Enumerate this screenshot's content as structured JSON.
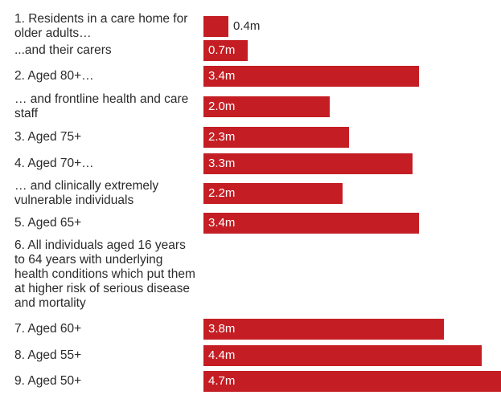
{
  "chart_data": {
    "type": "bar",
    "orientation": "horizontal",
    "categories": [
      "1. Residents in a care home for older adults…",
      "...and their carers",
      "2. Aged 80+…",
      "… and frontline health and care staff",
      "3. Aged 75+",
      "4. Aged 70+…",
      "… and clinically extremely vulnerable individuals",
      "5. Aged 65+",
      "6. All individuals aged 16 years to 64 years with underlying health conditions which put them at higher risk of serious disease and mortality",
      "7. Aged 60+",
      "8. Aged 55+",
      "9. Aged 50+"
    ],
    "values": [
      0.4,
      0.7,
      3.4,
      2.0,
      2.3,
      3.3,
      2.2,
      3.4,
      null,
      3.8,
      4.4,
      4.7
    ],
    "value_labels": [
      "0.4m",
      "0.7m",
      "3.4m",
      "2.0m",
      "2.3m",
      "3.3m",
      "2.2m",
      "3.4m",
      "",
      "3.8m",
      "4.4m",
      "4.7m"
    ],
    "unit": "m",
    "xlim": [
      0,
      4.7
    ],
    "grid": false,
    "legend": "none",
    "colors": {
      "bar": "#c41e24",
      "label_inside": "#ffffff",
      "label_outside": "#2a2a2a",
      "category_text": "#2a2a2a"
    }
  }
}
